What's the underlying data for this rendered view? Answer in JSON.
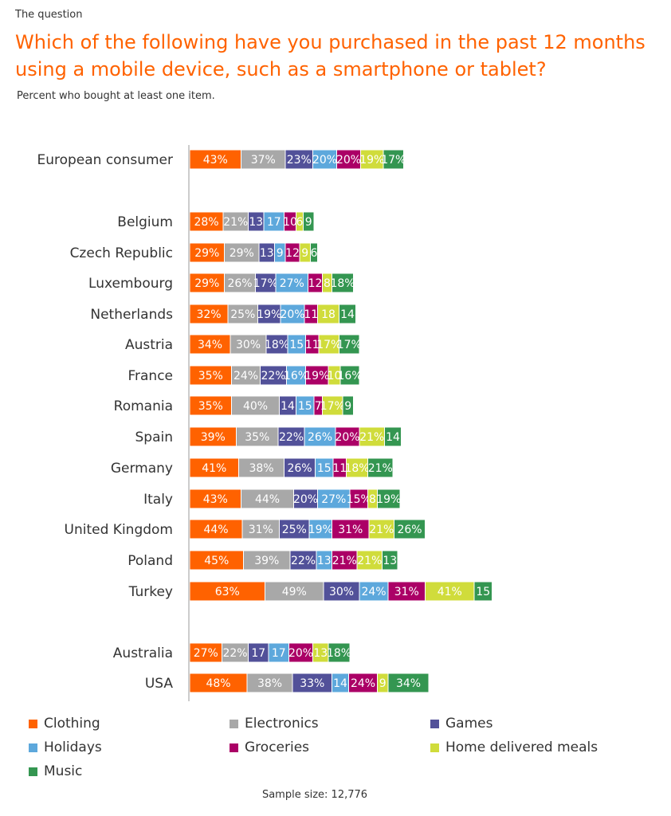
{
  "header": {
    "kicker": "The question",
    "title": "Which of the following have you purchased in the past 12 months using a mobile device, such as a smartphone or tablet?",
    "subtitle": "Percent who bought at least one item."
  },
  "footer": {
    "sample": "Sample size: 12,776"
  },
  "colors": {
    "Clothing": "#FF6200",
    "Electronics": "#A8A8A8",
    "Games": "#525199",
    "Holidays": "#5DA8DC",
    "Groceries": "#AB0066",
    "Home delivered meals": "#D0DC3B",
    "Music": "#349651"
  },
  "chart_data": {
    "type": "bar",
    "orientation": "horizontal-stacked",
    "title": "Which of the following have you purchased in the past 12 months using a mobile device, such as a smartphone or tablet?",
    "series_names": [
      "Clothing",
      "Electronics",
      "Games",
      "Holidays",
      "Groceries",
      "Home delivered meals",
      "Music"
    ],
    "legend": [
      "Clothing",
      "Electronics",
      "Games",
      "Holidays",
      "Groceries",
      "Home delivered meals",
      "Music"
    ],
    "legend_position": "bottom",
    "rows": [
      {
        "name": "European consumer",
        "values": [
          43,
          37,
          23,
          20,
          20,
          19,
          17
        ],
        "labels": [
          "43%",
          "37%",
          "23%",
          "20%",
          "20%",
          "19%",
          "17%"
        ]
      },
      {
        "name": "Belgium",
        "values": [
          28,
          21,
          13,
          17,
          10,
          6,
          9
        ],
        "labels": [
          "28%",
          "21%",
          "13",
          "17",
          "10",
          "6",
          "9"
        ]
      },
      {
        "name": "Czech Republic",
        "values": [
          29,
          29,
          13,
          9,
          12,
          9,
          6
        ],
        "labels": [
          "29%",
          "29%",
          "13",
          "9",
          "12",
          "9",
          "6"
        ]
      },
      {
        "name": "Luxembourg",
        "values": [
          29,
          26,
          17,
          27,
          12,
          8,
          18
        ],
        "labels": [
          "29%",
          "26%",
          "17%",
          "27%",
          "12",
          "8",
          "18%"
        ]
      },
      {
        "name": "Netherlands",
        "values": [
          32,
          25,
          19,
          20,
          11,
          18,
          14
        ],
        "labels": [
          "32%",
          "25%",
          "19%",
          "20%",
          "11",
          "18",
          "14"
        ]
      },
      {
        "name": "Austria",
        "values": [
          34,
          30,
          18,
          15,
          11,
          17,
          17
        ],
        "labels": [
          "34%",
          "30%",
          "18%",
          "15",
          "11",
          "17%",
          "17%"
        ]
      },
      {
        "name": "France",
        "values": [
          35,
          24,
          22,
          16,
          19,
          10,
          16
        ],
        "labels": [
          "35%",
          "24%",
          "22%",
          "16%",
          "19%",
          "10",
          "16%"
        ]
      },
      {
        "name": "Romania",
        "values": [
          35,
          40,
          14,
          15,
          7,
          17,
          9
        ],
        "labels": [
          "35%",
          "40%",
          "14",
          "15",
          "7",
          "17%",
          "9"
        ]
      },
      {
        "name": "Spain",
        "values": [
          39,
          35,
          22,
          26,
          20,
          21,
          14
        ],
        "labels": [
          "39%",
          "35%",
          "22%",
          "26%",
          "20%",
          "21%",
          "14"
        ]
      },
      {
        "name": "Germany",
        "values": [
          41,
          38,
          26,
          15,
          11,
          18,
          21
        ],
        "labels": [
          "41%",
          "38%",
          "26%",
          "15",
          "11",
          "18%",
          "21%"
        ]
      },
      {
        "name": "Italy",
        "values": [
          43,
          44,
          20,
          27,
          15,
          8,
          19
        ],
        "labels": [
          "43%",
          "44%",
          "20%",
          "27%",
          "15%",
          "8",
          "19%"
        ]
      },
      {
        "name": "United Kingdom",
        "values": [
          44,
          31,
          25,
          19,
          31,
          21,
          26
        ],
        "labels": [
          "44%",
          "31%",
          "25%",
          "19%",
          "31%",
          "21%",
          "26%"
        ]
      },
      {
        "name": "Poland",
        "values": [
          45,
          39,
          22,
          13,
          21,
          21,
          13
        ],
        "labels": [
          "45%",
          "39%",
          "22%",
          "13",
          "21%",
          "21%",
          "13"
        ]
      },
      {
        "name": "Turkey",
        "values": [
          63,
          49,
          30,
          24,
          31,
          41,
          15
        ],
        "labels": [
          "63%",
          "49%",
          "30%",
          "24%",
          "31%",
          "41%",
          "15"
        ]
      },
      {
        "name": "Australia",
        "values": [
          27,
          22,
          17,
          17,
          20,
          13,
          18
        ],
        "labels": [
          "27%",
          "22%",
          "17",
          "17",
          "20%",
          "13",
          "18%"
        ]
      },
      {
        "name": "USA",
        "values": [
          48,
          38,
          33,
          14,
          24,
          9,
          34
        ],
        "labels": [
          "48%",
          "38%",
          "33%",
          "14",
          "24%",
          "9",
          "34%"
        ]
      }
    ],
    "xlim": [
      0,
      260
    ],
    "grid": false
  }
}
